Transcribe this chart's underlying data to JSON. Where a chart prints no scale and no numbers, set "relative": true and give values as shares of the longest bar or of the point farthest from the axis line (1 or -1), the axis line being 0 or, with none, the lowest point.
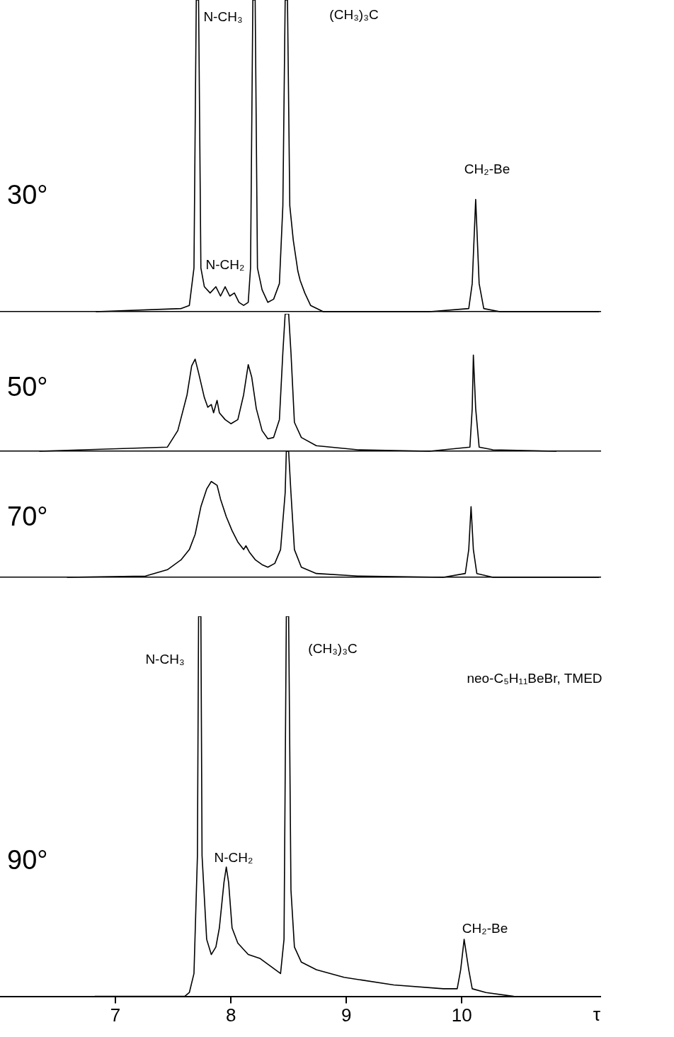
{
  "chart_data": [
    {
      "type": "line",
      "title": "30°",
      "relative": true,
      "color": "#000000",
      "marker": "none",
      "xlim": [
        6.0,
        11.2
      ],
      "tick_labels": false,
      "x": [
        6.83,
        7.57,
        7.64,
        7.68,
        7.7,
        7.72,
        7.74,
        7.77,
        7.82,
        7.87,
        7.91,
        7.95,
        7.99,
        8.03,
        8.07,
        8.11,
        8.15,
        8.17,
        8.19,
        8.21,
        8.23,
        8.27,
        8.32,
        8.37,
        8.42,
        8.45,
        8.47,
        8.49,
        8.51,
        8.54,
        8.58,
        8.6,
        8.64,
        8.69,
        8.8,
        9.72,
        10.06,
        10.09,
        10.12,
        10.15,
        10.19,
        10.33,
        11.19
      ],
      "values": [
        0,
        0.01,
        0.02,
        0.14,
        1,
        1,
        0.14,
        0.08,
        0.06,
        0.08,
        0.05,
        0.08,
        0.05,
        0.06,
        0.03,
        0.02,
        0.03,
        0.14,
        1,
        1,
        0.14,
        0.07,
        0.03,
        0.04,
        0.09,
        0.34,
        1,
        1,
        0.34,
        0.23,
        0.13,
        0.1,
        0.06,
        0.02,
        0,
        0,
        0.01,
        0.09,
        0.36,
        0.09,
        0.01,
        0,
        0
      ],
      "annotations": [
        "N-CH₃",
        "N-CH₂",
        "(CH₃)₃C",
        "CH₂-Be"
      ]
    },
    {
      "type": "line",
      "title": "50°",
      "relative": true,
      "color": "#000000",
      "marker": "none",
      "xlim": [
        6.0,
        11.2
      ],
      "tick_labels": false,
      "x": [
        6.34,
        7.45,
        7.54,
        7.62,
        7.66,
        7.69,
        7.72,
        7.77,
        7.8,
        7.83,
        7.85,
        7.88,
        7.9,
        7.95,
        8.0,
        8.06,
        8.11,
        8.15,
        8.18,
        8.22,
        8.27,
        8.32,
        8.37,
        8.42,
        8.45,
        8.47,
        8.5,
        8.52,
        8.55,
        8.61,
        8.74,
        9.1,
        9.72,
        10.07,
        10.09,
        10.1,
        10.12,
        10.15,
        10.27,
        10.82
      ],
      "values": [
        0,
        0.03,
        0.15,
        0.41,
        0.62,
        0.67,
        0.57,
        0.39,
        0.32,
        0.34,
        0.28,
        0.37,
        0.28,
        0.23,
        0.2,
        0.23,
        0.41,
        0.63,
        0.54,
        0.31,
        0.15,
        0.09,
        0.1,
        0.23,
        0.72,
        1,
        1,
        0.72,
        0.21,
        0.1,
        0.04,
        0.01,
        0,
        0.03,
        0.31,
        0.7,
        0.31,
        0.03,
        0.01,
        0
      ]
    },
    {
      "type": "line",
      "title": "70°",
      "relative": true,
      "color": "#000000",
      "marker": "none",
      "xlim": [
        6.0,
        11.2
      ],
      "tick_labels": false,
      "x": [
        6.58,
        7.26,
        7.45,
        7.57,
        7.64,
        7.69,
        7.74,
        7.79,
        7.83,
        7.88,
        7.91,
        7.96,
        8.01,
        8.06,
        8.11,
        8.13,
        8.16,
        8.21,
        8.27,
        8.32,
        8.38,
        8.43,
        8.47,
        8.48,
        8.5,
        8.52,
        8.55,
        8.61,
        8.74,
        9.1,
        9.84,
        10.03,
        10.06,
        10.08,
        10.1,
        10.13,
        10.27,
        11.19
      ],
      "values": [
        0,
        0.01,
        0.06,
        0.14,
        0.22,
        0.34,
        0.56,
        0.7,
        0.76,
        0.73,
        0.62,
        0.48,
        0.37,
        0.28,
        0.22,
        0.25,
        0.2,
        0.14,
        0.1,
        0.08,
        0.11,
        0.22,
        0.67,
        1,
        1,
        0.67,
        0.22,
        0.08,
        0.03,
        0.01,
        0,
        0.03,
        0.22,
        0.56,
        0.22,
        0.03,
        0,
        0
      ]
    },
    {
      "type": "line",
      "title": "90°",
      "relative": true,
      "color": "#000000",
      "marker": "none",
      "xlim": [
        6.0,
        11.2
      ],
      "xticks": [
        7,
        8,
        9,
        10
      ],
      "xlabel": "τ",
      "tick_labels": "x",
      "x": [
        6.82,
        7.6,
        7.64,
        7.68,
        7.71,
        7.72,
        7.74,
        7.75,
        7.79,
        7.83,
        7.87,
        7.9,
        7.94,
        7.96,
        7.98,
        8.01,
        8.06,
        8.15,
        8.25,
        8.34,
        8.43,
        8.46,
        8.48,
        8.5,
        8.52,
        8.55,
        8.61,
        8.74,
        8.98,
        9.41,
        9.84,
        9.96,
        9.99,
        10.02,
        10.06,
        10.09,
        10.21,
        10.45
      ],
      "values": [
        0,
        0,
        0.01,
        0.06,
        0.37,
        1,
        1,
        0.37,
        0.15,
        0.11,
        0.13,
        0.18,
        0.3,
        0.34,
        0.3,
        0.18,
        0.14,
        0.11,
        0.1,
        0.08,
        0.06,
        0.15,
        1,
        1,
        0.28,
        0.13,
        0.09,
        0.07,
        0.05,
        0.03,
        0.02,
        0.02,
        0.07,
        0.15,
        0.07,
        0.02,
        0.01,
        0
      ],
      "annotations": [
        "N-CH₃",
        "(CH₃)₃C",
        "N-CH₂",
        "CH₂-Be",
        "neo-C₅H₁₁BeBr, TMED"
      ]
    }
  ]
}
